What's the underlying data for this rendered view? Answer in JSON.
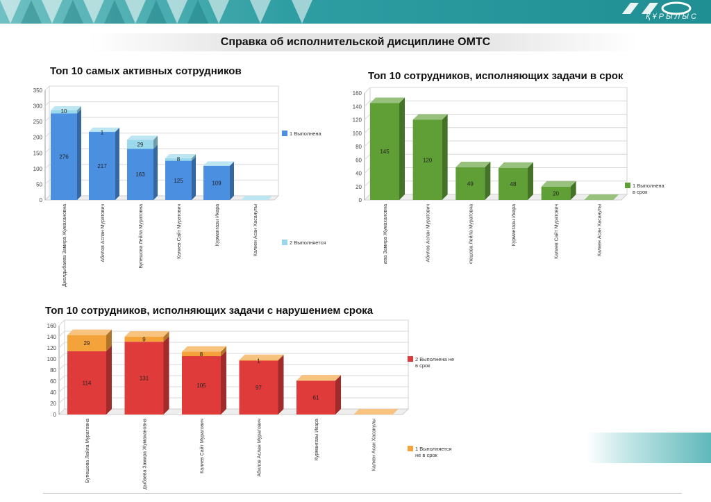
{
  "header": {
    "logo_text": "ҚҰРЫЛЫС",
    "page_title": "Справка об исполнительской дисциплине ОМТС"
  },
  "colors": {
    "banner": "#2f9ea3",
    "blue_done": "#4a8fe0",
    "blue_progress": "#9ad8ec",
    "green": "#5f9f36",
    "red": "#e03b3b",
    "orange": "#f4a33a"
  },
  "chart_data": [
    {
      "type": "bar",
      "title": "Топ 10 самых активных сотрудников",
      "stacked": true,
      "categories": [
        "Джолдыбаева Замира Жумахановна",
        "Абилов Аслан Муратович",
        "Бупешова Лейла Муратовна",
        "Калиев Сайт Муратович",
        "Курмангазы Икара",
        "Калкен Асан Хасанулы"
      ],
      "series": [
        {
          "name": "1 Выполнена",
          "values": [
            276,
            217,
            163,
            125,
            109,
            0
          ],
          "color": "#4a8fe0"
        },
        {
          "name": "2 Выполняется",
          "values": [
            10,
            1,
            29,
            8,
            0,
            0
          ],
          "color": "#9ad8ec"
        }
      ],
      "data_labels": [
        [
          "276",
          "217",
          "163",
          "125",
          "109",
          ""
        ],
        [
          "10",
          "1",
          "29",
          "8",
          "",
          ""
        ]
      ],
      "yticks": [
        "0",
        "50",
        "100",
        "150",
        "200",
        "250",
        "300",
        "350"
      ],
      "ylim": [
        0,
        350
      ],
      "grid": true,
      "legend": "right"
    },
    {
      "type": "bar",
      "title": "Топ 10 сотрудников, исполняющих задачи в срок",
      "stacked": false,
      "categories": [
        "Джолдыбаева Замира Жумахановна",
        "Абилов Аслан Муратович",
        "Бупешова Лейла Муратовна",
        "Курмангазы Икара",
        "Калиев Сайт Муратович",
        "Калкен Асан Хасанулы"
      ],
      "series": [
        {
          "name": "1 Выполнена в срок",
          "values": [
            145,
            120,
            49,
            48,
            20,
            0
          ],
          "color": "#5f9f36"
        }
      ],
      "data_labels": [
        [
          "145",
          "120",
          "49",
          "48",
          "20",
          ""
        ]
      ],
      "yticks": [
        "0",
        "20",
        "40",
        "60",
        "80",
        "100",
        "120",
        "140",
        "160"
      ],
      "ylim": [
        0,
        160
      ],
      "grid": true,
      "legend": "right"
    },
    {
      "type": "bar",
      "title": "Топ 10 сотрудников, исполняющих задачи с нарушением срока",
      "stacked": true,
      "categories": [
        "Бупешова Лейла Муратовна",
        "Джолдыбаева Замира Жумахановна",
        "Калиев Сайт Муратович",
        "Абилов Аслан Муратович",
        "Курмангазы Икара",
        "Калкен Асан Хасанулы"
      ],
      "series": [
        {
          "name": "2 Выполнена не в срок",
          "values": [
            114,
            131,
            105,
            97,
            61,
            0
          ],
          "color": "#e03b3b"
        },
        {
          "name": "1 Выполняется не в срок",
          "values": [
            29,
            9,
            8,
            1,
            0,
            0
          ],
          "color": "#f4a33a"
        }
      ],
      "data_labels": [
        [
          "114",
          "131",
          "105",
          "97",
          "61",
          ""
        ],
        [
          "29",
          "9",
          "8",
          "1",
          "",
          ""
        ]
      ],
      "yticks": [
        "0",
        "20",
        "40",
        "60",
        "80",
        "100",
        "120",
        "140",
        "160"
      ],
      "ylim": [
        0,
        160
      ],
      "grid": true,
      "legend": "right"
    }
  ]
}
